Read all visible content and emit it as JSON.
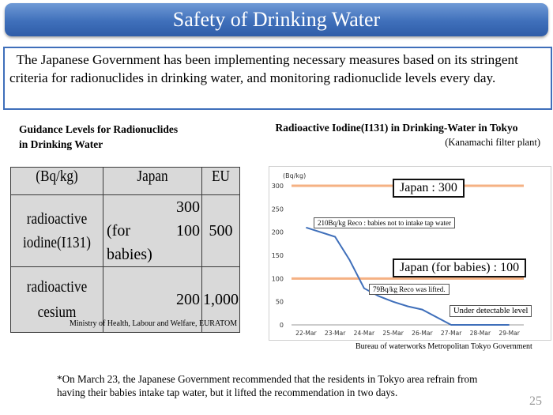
{
  "title": "Safety of Drinking Water",
  "intro": "The Japanese Government has been implementing necessary measures based on its stringent criteria for radionuclides in drinking water, and monitoring radionuclide levels every day.",
  "table_section": {
    "heading_line1": "Guidance Levels for Radionuclides",
    "heading_line2": "in Drinking Water",
    "header": {
      "unit": "(Bq/kg)",
      "japan": "Japan",
      "eu": "EU"
    },
    "iodine": {
      "label_line1": "radioactive",
      "label_line2": "iodine(I131)",
      "japan_value": "300",
      "babies_label": "(for babies)",
      "babies_value": "100",
      "eu_value": "500"
    },
    "cesium": {
      "label_line1": "radioactive",
      "label_line2": "cesium",
      "japan_value": "200",
      "eu_value": "1,000"
    },
    "source": "Ministry of Health, Labour and Welfare, EURATOM"
  },
  "chart_section": {
    "heading": "Radioactive Iodine(I131) in Drinking-Water in Tokyo",
    "subheading": "(Kanamachi filter plant)",
    "source": "Bureau of waterworks Metropolitan Tokyo Government"
  },
  "chart_data": {
    "type": "line",
    "ylabel": "(Bq/kg)",
    "ylim": [
      0,
      300
    ],
    "yticks": [
      0,
      50,
      100,
      150,
      200,
      250,
      300
    ],
    "categories": [
      "22-Mar",
      "23-Mar",
      "24-Mar",
      "25-Mar",
      "26-Mar",
      "27-Mar",
      "28-Mar",
      "29-Mar"
    ],
    "x": [
      0,
      1,
      1.5,
      2,
      2.5,
      3,
      3.5,
      4,
      5,
      6,
      7
    ],
    "y": [
      210,
      190,
      140,
      79,
      62,
      50,
      40,
      33,
      0,
      0,
      0
    ],
    "reference_lines": [
      {
        "label": "Japan : 300",
        "value": 300
      },
      {
        "label": "Japan (for babies) : 100",
        "value": 100
      }
    ],
    "annotations": [
      "210Bq/kg Reco : babies not to  intake tap water",
      "79Bq/kg  Reco was lifted.",
      "Under detectable level"
    ],
    "colors": {
      "line": "#3f6fba",
      "reference": "#f5b183"
    },
    "grid": false
  },
  "footnote_line1": "*On March 23, the Japanese Government recommended that the residents in Tokyo area refrain from",
  "footnote_line2": "having their babies intake tap water, but it lifted the recommendation in two days.",
  "page_number": "25"
}
